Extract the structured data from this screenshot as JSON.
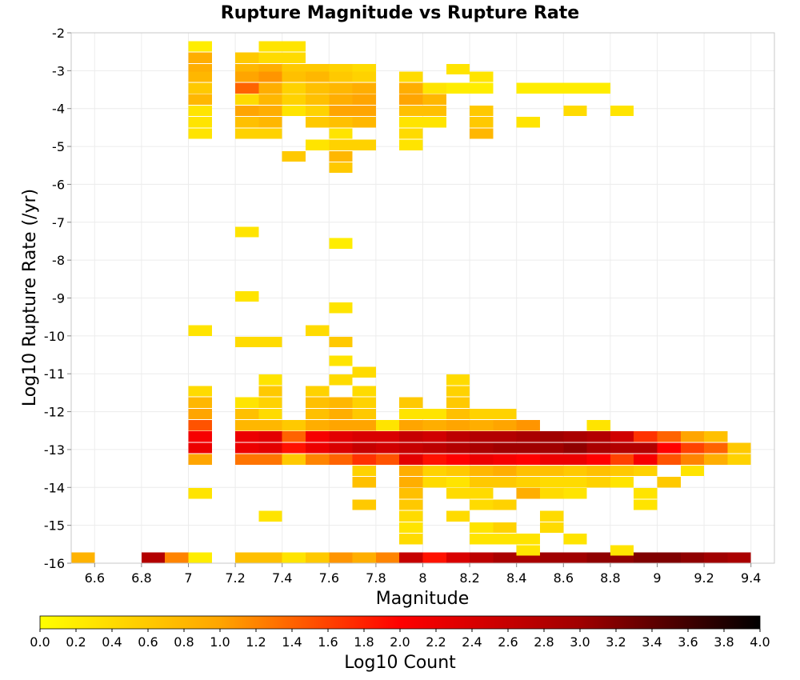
{
  "chart_data": {
    "type": "heatmap",
    "title": "Rupture Magnitude vs Rupture Rate",
    "xlabel": "Magnitude",
    "ylabel": "Log10 Rupture Rate (/yr)",
    "xlim": [
      6.5,
      9.5
    ],
    "ylim": [
      -16,
      -2
    ],
    "x_ticks": [
      6.6,
      6.8,
      7,
      7.2,
      7.4,
      7.6,
      7.8,
      8,
      8.2,
      8.4,
      8.6,
      8.8,
      9,
      9.2,
      9.4
    ],
    "x_tick_labels": [
      "6.6",
      "6.8",
      "7",
      "7.2",
      "7.4",
      "7.6",
      "7.8",
      "8",
      "8.2",
      "8.4",
      "8.6",
      "8.8",
      "9",
      "9.2",
      "9.4"
    ],
    "y_ticks": [
      -2,
      -3,
      -4,
      -5,
      -6,
      -7,
      -8,
      -9,
      -10,
      -11,
      -12,
      -13,
      -14,
      -15,
      -16
    ],
    "y_tick_labels": [
      "-2",
      "-3",
      "-4",
      "-5",
      "-6",
      "-7",
      "-8",
      "-9",
      "-10",
      "-11",
      "-12",
      "-13",
      "-14",
      "-15",
      "-16"
    ],
    "grid": true,
    "x_bin_width": 0.1,
    "y_bin_height": 0.28,
    "colorbar": {
      "label": "Log10 Count",
      "range": [
        0,
        4
      ],
      "ticks": [
        "0.0",
        "0.2",
        "0.4",
        "0.6",
        "0.8",
        "1.0",
        "1.2",
        "1.4",
        "1.6",
        "1.8",
        "2.0",
        "2.2",
        "2.4",
        "2.6",
        "2.8",
        "3.0",
        "3.2",
        "3.4",
        "3.6",
        "3.8",
        "4.0"
      ],
      "colors": [
        "#ffff00",
        "#ffa500",
        "#ff0000",
        "#a00000",
        "#000000"
      ]
    },
    "cells": [
      [
        6.5,
        -16,
        0.85
      ],
      [
        6.8,
        -16,
        2.8
      ],
      [
        6.9,
        -16,
        1.2
      ],
      [
        7.0,
        -16,
        0.2
      ],
      [
        7.2,
        -16,
        0.7
      ],
      [
        7.3,
        -16,
        0.7
      ],
      [
        7.4,
        -16,
        0.3
      ],
      [
        7.5,
        -16,
        0.6
      ],
      [
        7.6,
        -16,
        1.1
      ],
      [
        7.7,
        -16,
        0.9
      ],
      [
        7.8,
        -16,
        1.2
      ],
      [
        7.9,
        -16,
        2.6
      ],
      [
        8.0,
        -16,
        1.9
      ],
      [
        8.1,
        -16,
        2.4
      ],
      [
        8.2,
        -16,
        2.7
      ],
      [
        8.3,
        -16,
        2.9
      ],
      [
        8.4,
        -16,
        2.9
      ],
      [
        8.5,
        -16,
        3.0
      ],
      [
        8.6,
        -16,
        3.0
      ],
      [
        8.7,
        -16,
        3.1
      ],
      [
        8.8,
        -16,
        3.1
      ],
      [
        8.9,
        -16,
        3.2
      ],
      [
        9.0,
        -16,
        3.2
      ],
      [
        9.1,
        -16,
        3.1
      ],
      [
        9.2,
        -16,
        3.0
      ],
      [
        9.3,
        -16,
        2.9
      ],
      [
        7.0,
        -2.5,
        0.2
      ],
      [
        7.0,
        -2.8,
        0.9
      ],
      [
        7.0,
        -3.1,
        0.9
      ],
      [
        7.0,
        -3.3,
        0.8
      ],
      [
        7.0,
        -3.6,
        0.6
      ],
      [
        7.0,
        -3.9,
        0.8
      ],
      [
        7.0,
        -4.2,
        0.3
      ],
      [
        7.0,
        -4.5,
        0.3
      ],
      [
        7.0,
        -4.8,
        0.3
      ],
      [
        7.2,
        -2.8,
        0.6
      ],
      [
        7.2,
        -3.1,
        0.8
      ],
      [
        7.2,
        -3.3,
        1.0
      ],
      [
        7.2,
        -3.6,
        1.4
      ],
      [
        7.2,
        -3.9,
        0.4
      ],
      [
        7.2,
        -4.2,
        1.0
      ],
      [
        7.2,
        -4.5,
        0.7
      ],
      [
        7.2,
        -4.8,
        0.5
      ],
      [
        7.3,
        -2.5,
        0.3
      ],
      [
        7.3,
        -2.8,
        0.4
      ],
      [
        7.3,
        -3.1,
        0.9
      ],
      [
        7.3,
        -3.3,
        1.1
      ],
      [
        7.3,
        -3.6,
        0.9
      ],
      [
        7.3,
        -3.9,
        0.8
      ],
      [
        7.3,
        -4.2,
        0.9
      ],
      [
        7.3,
        -4.5,
        0.8
      ],
      [
        7.3,
        -4.8,
        0.5
      ],
      [
        7.4,
        -2.5,
        0.3
      ],
      [
        7.4,
        -2.8,
        0.4
      ],
      [
        7.4,
        -3.1,
        0.6
      ],
      [
        7.4,
        -3.3,
        0.7
      ],
      [
        7.4,
        -3.6,
        0.5
      ],
      [
        7.4,
        -3.9,
        0.5
      ],
      [
        7.4,
        -4.2,
        0.3
      ],
      [
        7.4,
        -5.4,
        0.6
      ],
      [
        7.5,
        -3.1,
        0.6
      ],
      [
        7.5,
        -3.3,
        0.8
      ],
      [
        7.5,
        -3.6,
        0.7
      ],
      [
        7.5,
        -3.9,
        0.7
      ],
      [
        7.5,
        -4.2,
        0.5
      ],
      [
        7.5,
        -4.5,
        0.6
      ],
      [
        7.5,
        -5.1,
        0.3
      ],
      [
        7.6,
        -3.1,
        0.5
      ],
      [
        7.6,
        -3.3,
        0.6
      ],
      [
        7.6,
        -3.6,
        0.8
      ],
      [
        7.6,
        -3.9,
        0.9
      ],
      [
        7.6,
        -4.2,
        1.0
      ],
      [
        7.6,
        -4.5,
        0.7
      ],
      [
        7.6,
        -4.8,
        0.3
      ],
      [
        7.6,
        -5.1,
        0.5
      ],
      [
        7.6,
        -5.4,
        0.8
      ],
      [
        7.6,
        -5.7,
        0.6
      ],
      [
        7.7,
        -3.1,
        0.4
      ],
      [
        7.7,
        -3.3,
        0.5
      ],
      [
        7.7,
        -3.6,
        0.9
      ],
      [
        7.7,
        -3.9,
        1.0
      ],
      [
        7.7,
        -4.2,
        1.0
      ],
      [
        7.7,
        -4.5,
        0.8
      ],
      [
        7.7,
        -5.1,
        0.5
      ],
      [
        7.9,
        -3.3,
        0.4
      ],
      [
        7.9,
        -3.6,
        0.9
      ],
      [
        7.9,
        -3.9,
        1.0
      ],
      [
        7.9,
        -4.2,
        0.7
      ],
      [
        7.9,
        -4.5,
        0.3
      ],
      [
        7.9,
        -4.8,
        0.4
      ],
      [
        7.9,
        -5.1,
        0.3
      ],
      [
        8.0,
        -3.6,
        0.3
      ],
      [
        8.0,
        -3.9,
        0.8
      ],
      [
        8.0,
        -4.2,
        0.7
      ],
      [
        8.0,
        -4.5,
        0.3
      ],
      [
        8.1,
        -3.1,
        0.3
      ],
      [
        8.1,
        -3.6,
        0.2
      ],
      [
        8.2,
        -3.3,
        0.3
      ],
      [
        8.2,
        -3.6,
        0.2
      ],
      [
        8.2,
        -4.2,
        0.6
      ],
      [
        8.2,
        -4.5,
        0.6
      ],
      [
        8.2,
        -4.8,
        0.8
      ],
      [
        8.4,
        -3.6,
        0.2
      ],
      [
        8.5,
        -3.6,
        0.2
      ],
      [
        8.6,
        -3.6,
        0.2
      ],
      [
        8.7,
        -3.6,
        0.2
      ],
      [
        8.4,
        -4.5,
        0.3
      ],
      [
        8.6,
        -4.2,
        0.4
      ],
      [
        8.8,
        -4.2,
        0.3
      ],
      [
        7.2,
        -7.4,
        0.3
      ],
      [
        7.6,
        -7.7,
        0.2
      ],
      [
        7.2,
        -9.1,
        0.3
      ],
      [
        7.6,
        -9.4,
        0.3
      ],
      [
        7.0,
        -10.0,
        0.3
      ],
      [
        7.5,
        -10.0,
        0.4
      ],
      [
        7.2,
        -10.3,
        0.4
      ],
      [
        7.3,
        -10.3,
        0.4
      ],
      [
        7.6,
        -10.3,
        0.6
      ],
      [
        7.6,
        -10.8,
        0.3
      ],
      [
        7.7,
        -11.1,
        0.4
      ],
      [
        7.0,
        -11.6,
        0.4
      ],
      [
        7.0,
        -11.9,
        0.8
      ],
      [
        7.0,
        -12.2,
        1.0
      ],
      [
        7.0,
        -12.5,
        1.5
      ],
      [
        7.0,
        -12.8,
        2.1
      ],
      [
        7.0,
        -13.1,
        2.2
      ],
      [
        7.0,
        -13.4,
        1.0
      ],
      [
        7.0,
        -14.3,
        0.3
      ],
      [
        7.2,
        -11.9,
        0.3
      ],
      [
        7.2,
        -12.2,
        0.7
      ],
      [
        7.2,
        -12.5,
        0.8
      ],
      [
        7.2,
        -12.8,
        2.2
      ],
      [
        7.2,
        -13.1,
        2.2
      ],
      [
        7.2,
        -13.4,
        1.3
      ],
      [
        7.3,
        -11.3,
        0.3
      ],
      [
        7.3,
        -11.6,
        0.6
      ],
      [
        7.3,
        -11.9,
        0.5
      ],
      [
        7.3,
        -12.2,
        0.4
      ],
      [
        7.3,
        -12.5,
        0.8
      ],
      [
        7.3,
        -12.8,
        2.3
      ],
      [
        7.3,
        -13.1,
        2.3
      ],
      [
        7.3,
        -13.4,
        1.3
      ],
      [
        7.3,
        -14.9,
        0.3
      ],
      [
        7.4,
        -12.5,
        0.6
      ],
      [
        7.4,
        -12.8,
        1.4
      ],
      [
        7.4,
        -13.1,
        1.9
      ],
      [
        7.4,
        -13.4,
        0.6
      ],
      [
        7.5,
        -11.6,
        0.5
      ],
      [
        7.5,
        -11.9,
        0.7
      ],
      [
        7.5,
        -12.2,
        0.7
      ],
      [
        7.5,
        -12.5,
        0.9
      ],
      [
        7.5,
        -12.8,
        2.1
      ],
      [
        7.5,
        -13.1,
        2.2
      ],
      [
        7.5,
        -13.4,
        1.2
      ],
      [
        7.6,
        -11.3,
        0.4
      ],
      [
        7.6,
        -11.9,
        0.8
      ],
      [
        7.6,
        -12.2,
        0.9
      ],
      [
        7.6,
        -12.5,
        1.0
      ],
      [
        7.6,
        -12.8,
        2.3
      ],
      [
        7.6,
        -13.1,
        2.4
      ],
      [
        7.6,
        -13.4,
        1.4
      ],
      [
        7.7,
        -11.6,
        0.4
      ],
      [
        7.7,
        -11.9,
        0.5
      ],
      [
        7.7,
        -12.2,
        0.6
      ],
      [
        7.7,
        -12.5,
        1.0
      ],
      [
        7.7,
        -12.8,
        2.4
      ],
      [
        7.7,
        -13.1,
        2.6
      ],
      [
        7.7,
        -13.4,
        1.7
      ],
      [
        7.7,
        -13.7,
        0.5
      ],
      [
        7.7,
        -14.0,
        0.7
      ],
      [
        7.7,
        -14.6,
        0.6
      ],
      [
        7.8,
        -12.5,
        0.3
      ],
      [
        7.8,
        -12.8,
        2.4
      ],
      [
        7.8,
        -13.1,
        2.5
      ],
      [
        7.8,
        -13.4,
        1.5
      ],
      [
        7.9,
        -11.9,
        0.6
      ],
      [
        7.9,
        -12.2,
        0.3
      ],
      [
        7.9,
        -12.5,
        1.0
      ],
      [
        7.9,
        -12.8,
        2.6
      ],
      [
        7.9,
        -13.1,
        2.6
      ],
      [
        7.9,
        -13.4,
        2.3
      ],
      [
        7.9,
        -13.7,
        0.9
      ],
      [
        7.9,
        -14.0,
        0.9
      ],
      [
        7.9,
        -14.3,
        0.7
      ],
      [
        7.9,
        -14.6,
        0.6
      ],
      [
        7.9,
        -14.9,
        0.4
      ],
      [
        7.9,
        -15.2,
        0.3
      ],
      [
        7.9,
        -15.5,
        0.4
      ],
      [
        8.0,
        -12.2,
        0.3
      ],
      [
        8.0,
        -12.5,
        0.9
      ],
      [
        8.0,
        -12.8,
        2.5
      ],
      [
        8.0,
        -13.1,
        2.7
      ],
      [
        8.0,
        -13.4,
        1.9
      ],
      [
        8.0,
        -13.7,
        0.5
      ],
      [
        8.0,
        -14.0,
        0.4
      ],
      [
        8.1,
        -11.3,
        0.4
      ],
      [
        8.1,
        -11.6,
        0.5
      ],
      [
        8.1,
        -11.9,
        0.6
      ],
      [
        8.1,
        -12.2,
        0.7
      ],
      [
        8.1,
        -12.5,
        1.0
      ],
      [
        8.1,
        -12.8,
        2.7
      ],
      [
        8.1,
        -13.1,
        2.8
      ],
      [
        8.1,
        -13.4,
        2.0
      ],
      [
        8.1,
        -13.7,
        0.6
      ],
      [
        8.1,
        -14.0,
        0.3
      ],
      [
        8.1,
        -14.3,
        0.4
      ],
      [
        8.1,
        -14.9,
        0.4
      ],
      [
        8.2,
        -12.2,
        0.5
      ],
      [
        8.2,
        -12.5,
        0.9
      ],
      [
        8.2,
        -12.8,
        2.8
      ],
      [
        8.2,
        -13.1,
        2.9
      ],
      [
        8.2,
        -13.4,
        2.2
      ],
      [
        8.2,
        -13.7,
        0.8
      ],
      [
        8.2,
        -14.0,
        0.6
      ],
      [
        8.2,
        -14.3,
        0.4
      ],
      [
        8.2,
        -14.6,
        0.4
      ],
      [
        8.2,
        -15.2,
        0.3
      ],
      [
        8.2,
        -15.5,
        0.3
      ],
      [
        8.3,
        -12.2,
        0.5
      ],
      [
        8.3,
        -12.5,
        1.0
      ],
      [
        8.3,
        -12.8,
        2.8
      ],
      [
        8.3,
        -13.1,
        3.0
      ],
      [
        8.3,
        -13.4,
        2.1
      ],
      [
        8.3,
        -13.7,
        0.9
      ],
      [
        8.3,
        -14.0,
        0.6
      ],
      [
        8.3,
        -14.6,
        0.5
      ],
      [
        8.3,
        -15.2,
        0.5
      ],
      [
        8.3,
        -15.5,
        0.3
      ],
      [
        8.4,
        -12.5,
        1.1
      ],
      [
        8.4,
        -12.8,
        2.9
      ],
      [
        8.4,
        -13.1,
        3.0
      ],
      [
        8.4,
        -13.4,
        2.0
      ],
      [
        8.4,
        -13.7,
        0.7
      ],
      [
        8.4,
        -14.0,
        0.5
      ],
      [
        8.4,
        -14.3,
        0.9
      ],
      [
        8.4,
        -15.5,
        0.3
      ],
      [
        8.4,
        -15.8,
        0.3
      ],
      [
        8.5,
        -12.8,
        3.0
      ],
      [
        8.5,
        -13.1,
        3.0
      ],
      [
        8.5,
        -13.4,
        2.2
      ],
      [
        8.5,
        -13.7,
        0.7
      ],
      [
        8.5,
        -14.0,
        0.4
      ],
      [
        8.5,
        -14.3,
        0.4
      ],
      [
        8.5,
        -14.9,
        0.4
      ],
      [
        8.5,
        -15.2,
        0.4
      ],
      [
        8.6,
        -12.8,
        2.9
      ],
      [
        8.6,
        -13.1,
        3.1
      ],
      [
        8.6,
        -13.4,
        2.2
      ],
      [
        8.6,
        -13.7,
        0.6
      ],
      [
        8.6,
        -14.0,
        0.4
      ],
      [
        8.6,
        -14.3,
        0.3
      ],
      [
        8.6,
        -15.5,
        0.3
      ],
      [
        8.7,
        -12.5,
        0.3
      ],
      [
        8.7,
        -12.8,
        2.8
      ],
      [
        8.7,
        -13.1,
        2.9
      ],
      [
        8.7,
        -13.4,
        2.0
      ],
      [
        8.7,
        -13.7,
        0.7
      ],
      [
        8.7,
        -14.0,
        0.5
      ],
      [
        8.8,
        -12.8,
        2.5
      ],
      [
        8.8,
        -13.1,
        2.8
      ],
      [
        8.8,
        -13.4,
        1.6
      ],
      [
        8.8,
        -13.7,
        0.6
      ],
      [
        8.8,
        -14.0,
        0.3
      ],
      [
        8.8,
        -15.8,
        0.3
      ],
      [
        8.9,
        -12.8,
        1.7
      ],
      [
        8.9,
        -13.1,
        2.8
      ],
      [
        8.9,
        -13.4,
        2.1
      ],
      [
        8.9,
        -13.7,
        0.5
      ],
      [
        8.9,
        -14.3,
        0.3
      ],
      [
        8.9,
        -14.6,
        0.3
      ],
      [
        9.0,
        -12.8,
        1.4
      ],
      [
        9.0,
        -13.1,
        2.0
      ],
      [
        9.0,
        -13.4,
        1.5
      ],
      [
        9.0,
        -14.0,
        0.6
      ],
      [
        9.1,
        -12.8,
        1.0
      ],
      [
        9.1,
        -13.1,
        1.6
      ],
      [
        9.1,
        -13.4,
        1.2
      ],
      [
        9.1,
        -13.7,
        0.3
      ],
      [
        9.2,
        -12.8,
        0.7
      ],
      [
        9.2,
        -13.1,
        1.4
      ],
      [
        9.2,
        -13.4,
        0.9
      ],
      [
        9.3,
        -13.1,
        0.6
      ],
      [
        9.3,
        -13.4,
        0.5
      ]
    ]
  }
}
